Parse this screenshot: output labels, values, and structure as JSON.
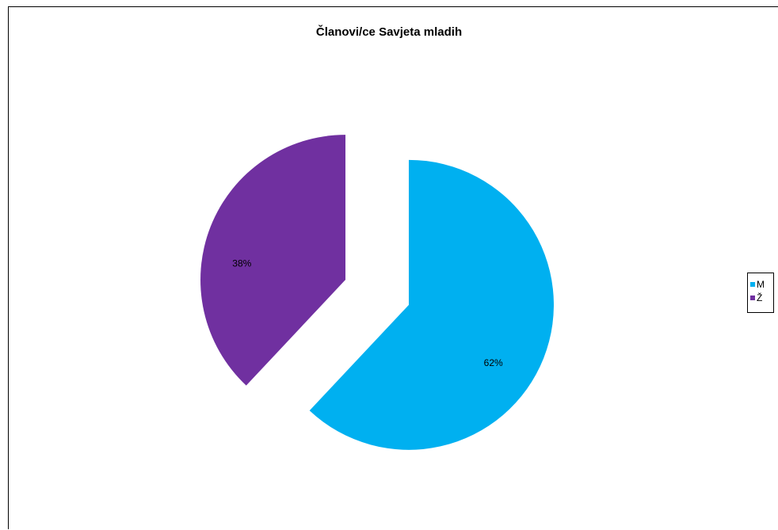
{
  "chart_data": {
    "type": "pie",
    "title": "Članovi/ce Savjeta mladih",
    "slices": [
      {
        "name": "M",
        "value": 62,
        "label": "62%",
        "color": "#00B0F0"
      },
      {
        "name": "Ž",
        "value": 38,
        "label": "38%",
        "color": "#7030A0"
      }
    ],
    "legend_position": "right",
    "exploded": true
  }
}
